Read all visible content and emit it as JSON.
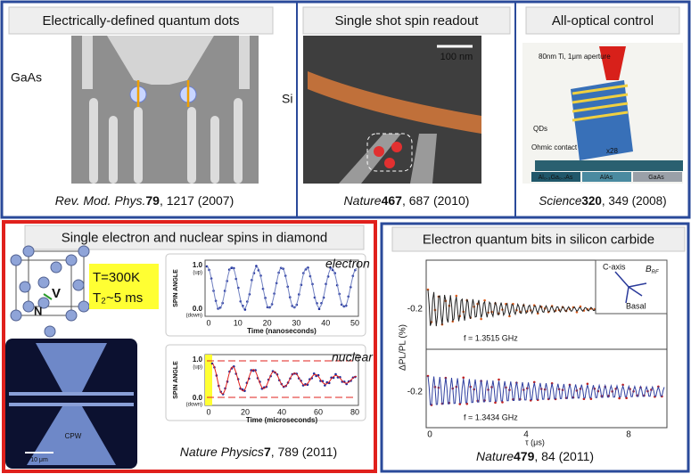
{
  "top_panels": [
    {
      "title": "Electrically-defined quantum dots",
      "material": "GaAs",
      "citation": {
        "journal": "Rev. Mod. Phys.",
        "volume": "79",
        "rest": ", 1217 (2007)"
      }
    },
    {
      "title": "Single shot spin readout",
      "material": "Si",
      "scale_bar": "100 nm",
      "citation": {
        "journal": "Nature",
        "volume": "467",
        "rest": ", 687 (2010)"
      }
    },
    {
      "title": "All-optical control",
      "aperture": "80nm Ti, 1μm aperture",
      "dots": "QDs",
      "contact": "Ohmic contact",
      "repeat": "x28",
      "layers": [
        "Al₀.₃Ga₀.₇As",
        "AlAs",
        "GaAs"
      ],
      "citation": {
        "journal": "Science",
        "volume": "320",
        "rest": ", 349 (2008)"
      }
    }
  ],
  "diamond": {
    "title": "Single  electron and nuclear spins in diamond",
    "temperature": "T=300K",
    "coherence": "T₂~5 ms",
    "lattice_labels": [
      "V",
      "N"
    ],
    "image_labels": {
      "waveguide": "CPW",
      "scale_bar": "10 μm"
    },
    "y_axis": "SPIN ANGLE",
    "y_ticks": [
      "1.0",
      "(up)",
      "0.0",
      "(down)"
    ],
    "electron_plot": {
      "label": "electron",
      "x_ticks": [
        "0",
        "10",
        "20",
        "30",
        "40",
        "50"
      ],
      "x_axis": "Time (nanoseconds)"
    },
    "nuclear_plot": {
      "label": "nuclear",
      "x_ticks": [
        "0",
        "20",
        "40",
        "60",
        "80"
      ],
      "x_axis": "Time (microseconds)"
    },
    "citation": {
      "journal": "Nature Physics",
      "volume": "7",
      "rest": ", 789 (2011)"
    }
  },
  "sic": {
    "title": "Electron quantum bits in silicon carbide",
    "y_axis": "ΔPL/PL (%)",
    "y_ticks": [
      "-0.2",
      "-0.2"
    ],
    "x_axis": "τ (μs)",
    "x_ticks": [
      "0",
      "4",
      "8"
    ],
    "frequencies": [
      "f = 1.3515 GHz",
      "f = 1.3434 GHz"
    ],
    "inset": {
      "axis": "C-axis",
      "field": "B",
      "field_sub": "RF",
      "plane": "Basal"
    },
    "citation": {
      "journal": "Nature",
      "volume": "479",
      "rest": ", 84 (2011)"
    }
  }
}
